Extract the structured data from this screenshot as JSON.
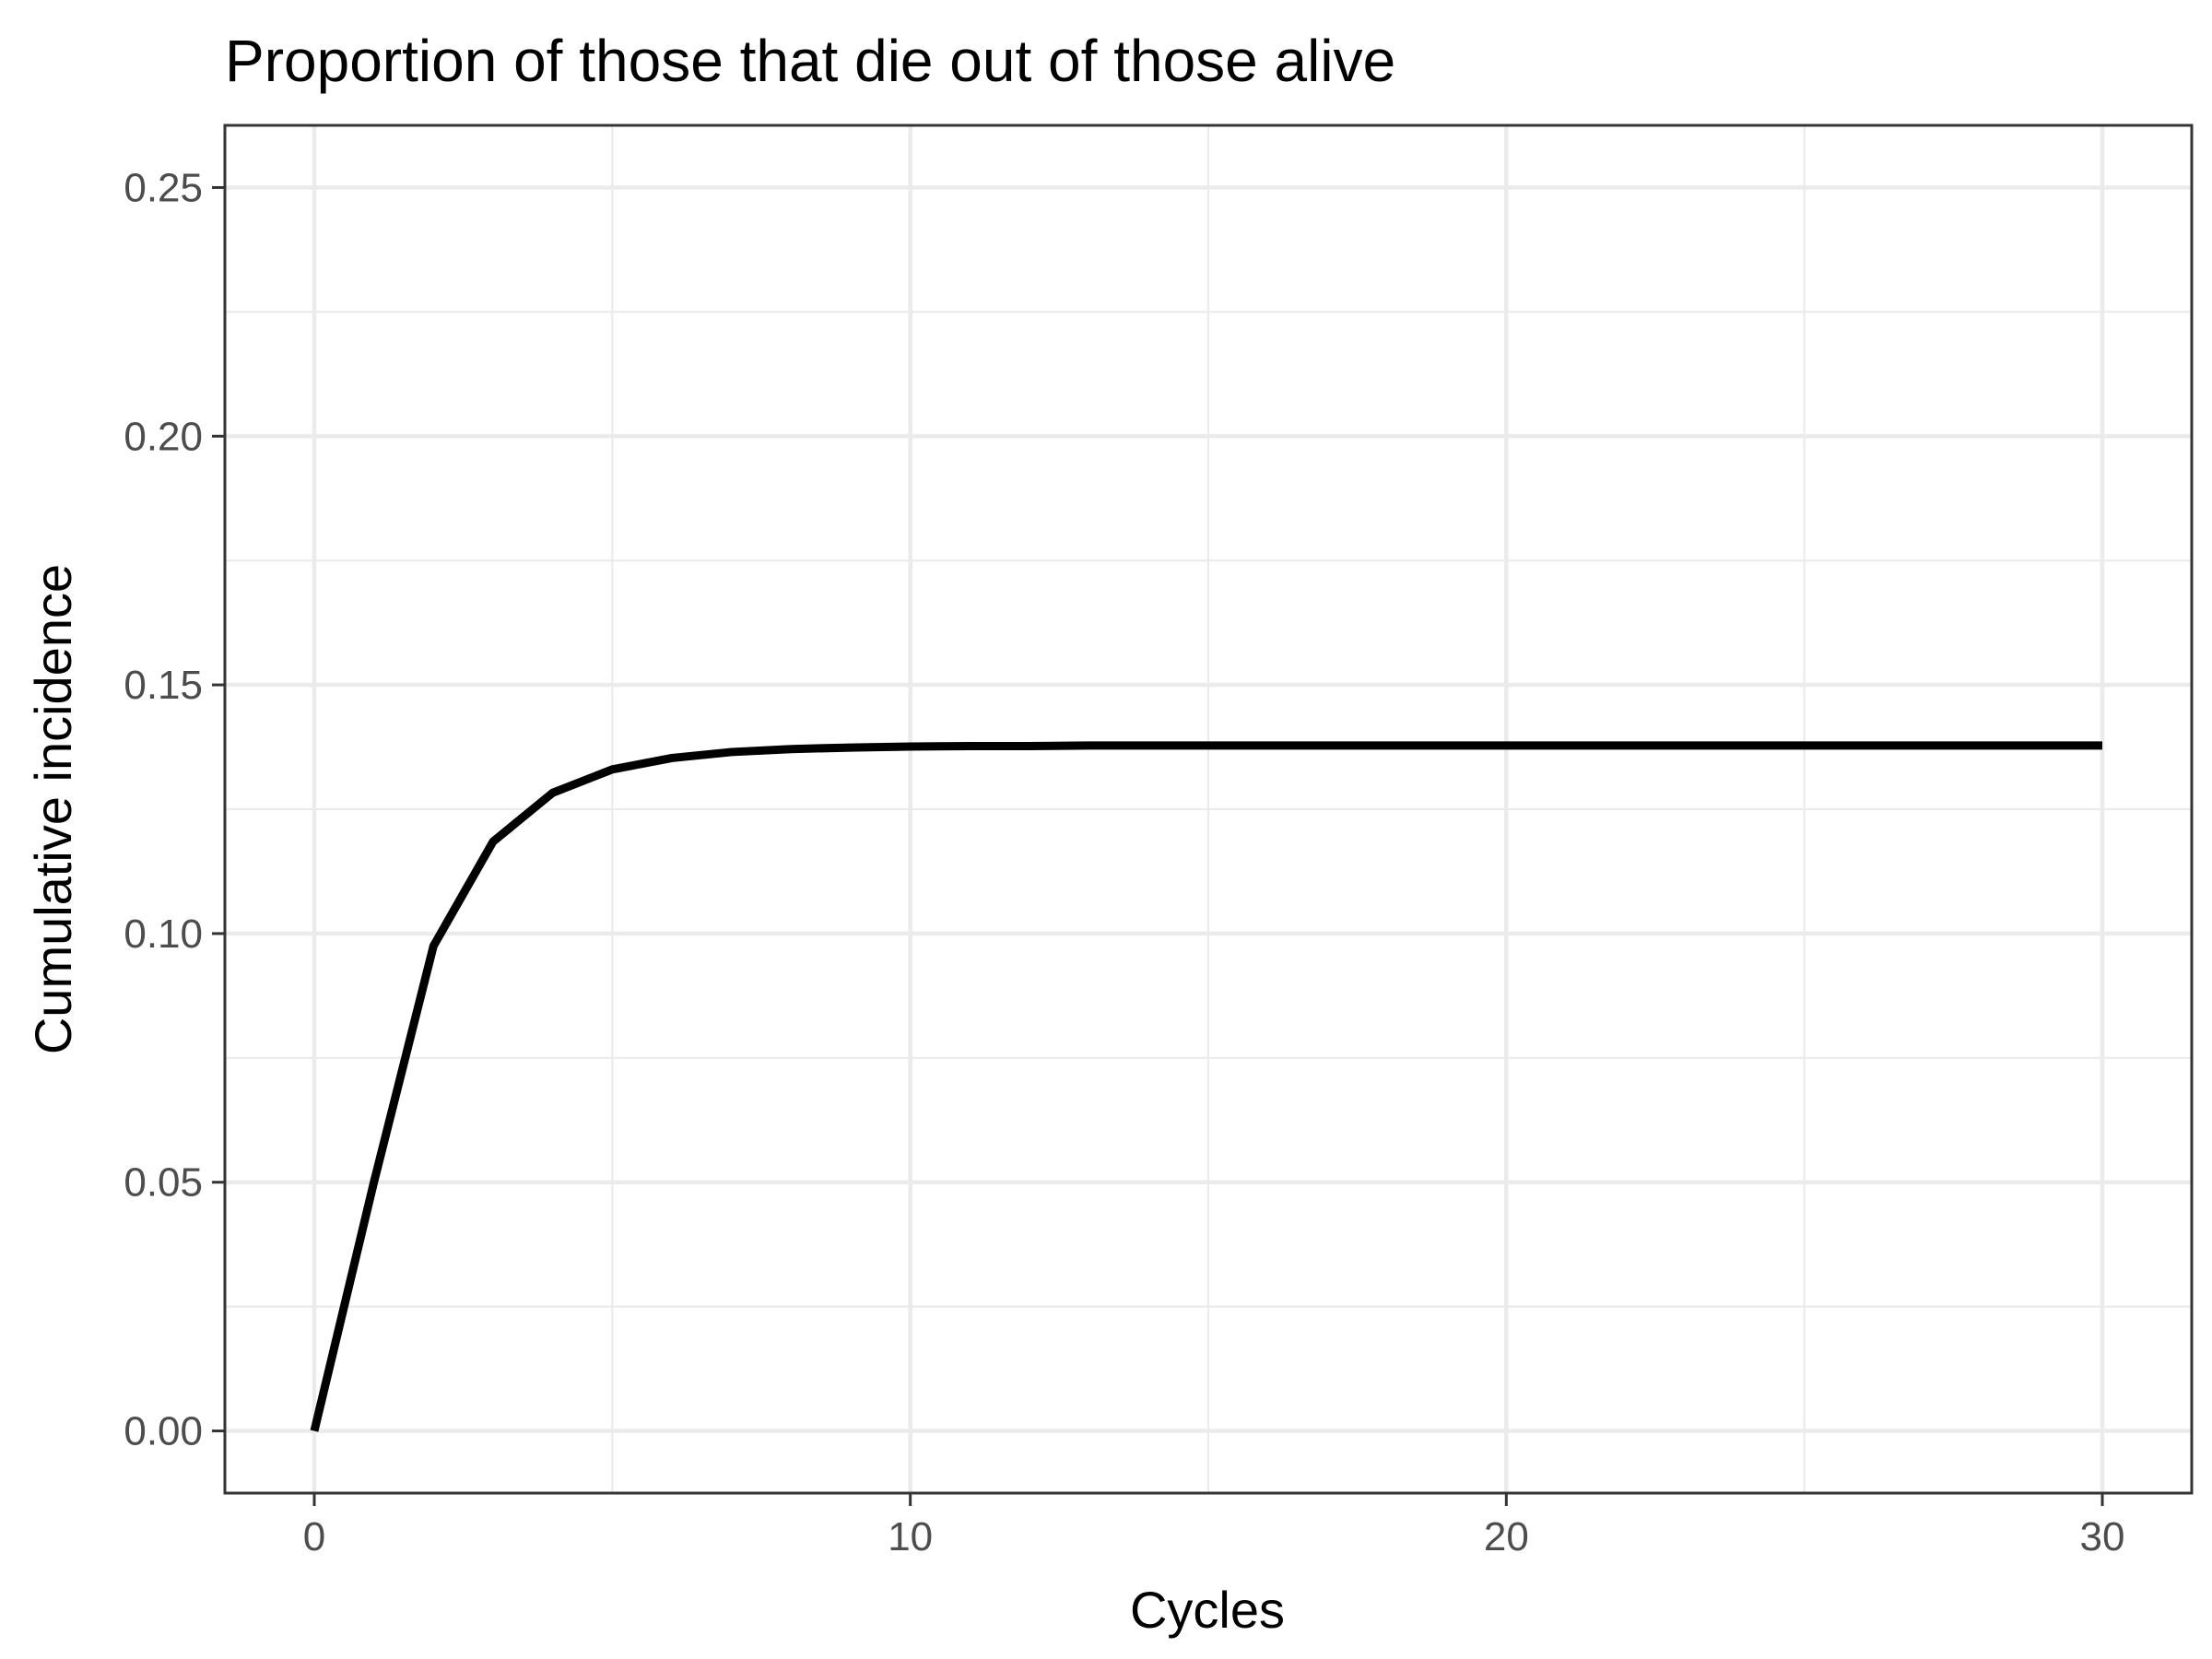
{
  "chart_data": {
    "type": "line",
    "title": "Proportion of those that die out of those alive",
    "xlabel": "Cycles",
    "ylabel": "Cumulative incidence",
    "xlim": [
      -1.5,
      31.5
    ],
    "ylim": [
      -0.0125,
      0.2625
    ],
    "x_ticks": [
      0,
      10,
      20,
      30
    ],
    "x_tick_labels": [
      "0",
      "10",
      "20",
      "30"
    ],
    "x_minor_ticks": [
      5,
      15,
      25
    ],
    "y_ticks": [
      0,
      0.05,
      0.1,
      0.15,
      0.2,
      0.25
    ],
    "y_tick_labels": [
      "0.00",
      "0.05",
      "0.10",
      "0.15",
      "0.20",
      "0.25"
    ],
    "y_minor_ticks": [
      0.025,
      0.075,
      0.125,
      0.175,
      0.225
    ],
    "grid": true,
    "line_color": "#000000",
    "series": [
      {
        "x": [
          0,
          1,
          2,
          3,
          4,
          5,
          6,
          7,
          8,
          9,
          10,
          11,
          12,
          13,
          14,
          15,
          16,
          17,
          18,
          19,
          20,
          21,
          22,
          23,
          24,
          25,
          26,
          27,
          28,
          29,
          30
        ],
        "values": [
          0,
          0.05,
          0.0975,
          0.1185,
          0.1283,
          0.133,
          0.1353,
          0.1365,
          0.1371,
          0.1374,
          0.1376,
          0.1377,
          0.1377,
          0.1378,
          0.1378,
          0.1378,
          0.1378,
          0.1378,
          0.1378,
          0.1378,
          0.1378,
          0.1378,
          0.1378,
          0.1378,
          0.1378,
          0.1378,
          0.1378,
          0.1378,
          0.1378,
          0.1378,
          0.1378
        ]
      }
    ]
  }
}
